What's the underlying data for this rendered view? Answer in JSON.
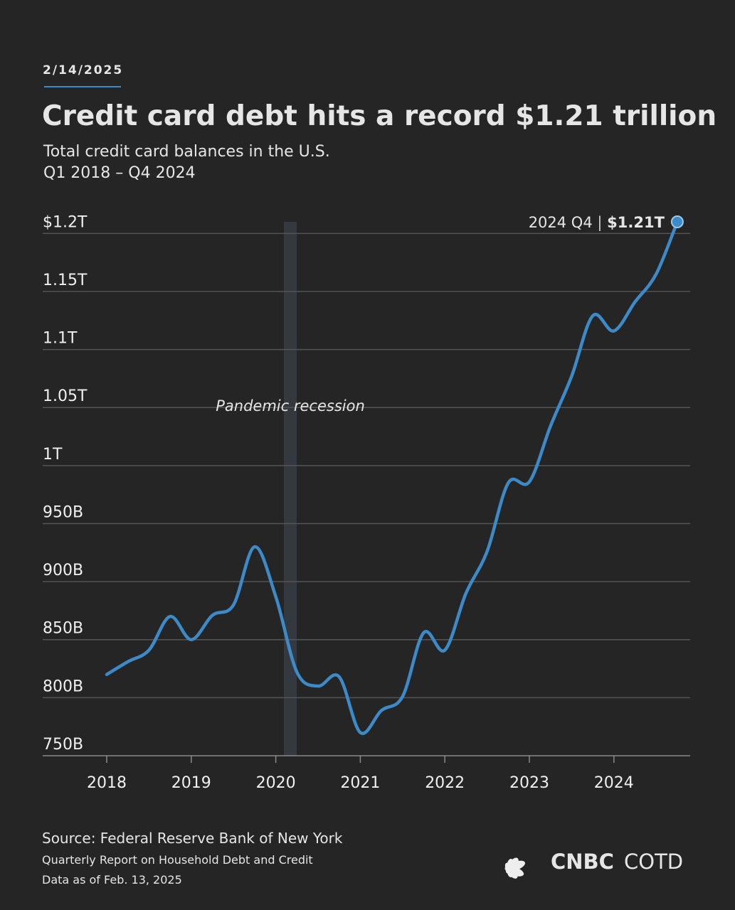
{
  "page": {
    "date": "2/14/2025",
    "source": "Source: Federal Reserve Bank of New York",
    "source_note_1": "Quarterly Report on Household Debt and Credit",
    "source_note_2": "Data as of Feb. 13, 2025",
    "brand": "CNBC",
    "brand_suffix": "COTD"
  },
  "chart_data": {
    "type": "line",
    "title": "Credit card debt hits a record $1.21 trillion",
    "subtitle": "Total credit card balances in the U.S.",
    "subtitle_2": "Q1 2018 – Q4 2024",
    "annotation": "Pandemic recession",
    "end_label": "2024 Q4",
    "end_value_label": "$1.21T",
    "categories": [
      "2018",
      null,
      null,
      null,
      "2019",
      null,
      null,
      null,
      "2020",
      null,
      null,
      null,
      "2021",
      null,
      null,
      null,
      "2022",
      null,
      null,
      null,
      "2023",
      null,
      null,
      null,
      "2024",
      null,
      null,
      null
    ],
    "series": [
      {
        "color": "#3d8ac8",
        "values": [
          820,
          831,
          841,
          870,
          850,
          871,
          880,
          930,
          887,
          822,
          810,
          818,
          770,
          789,
          801,
          856,
          841,
          890,
          926,
          985,
          986,
          1034,
          1077,
          1129,
          1116,
          1141,
          1165,
          1210
        ]
      }
    ],
    "ylim": [
      750,
      1210
    ],
    "yticks": [
      {
        "value": 750,
        "label": "750B"
      },
      {
        "value": 800,
        "label": "800B"
      },
      {
        "value": 850,
        "label": "850B"
      },
      {
        "value": 900,
        "label": "900B"
      },
      {
        "value": 950,
        "label": "950B"
      },
      {
        "value": 1000,
        "label": "1T"
      },
      {
        "value": 1050,
        "label": "1.05T"
      },
      {
        "value": 1100,
        "label": "1.1T"
      },
      {
        "value": 1150,
        "label": "1.15T"
      },
      {
        "value": 1200,
        "label": "$1.2T"
      }
    ],
    "grid": true
  }
}
